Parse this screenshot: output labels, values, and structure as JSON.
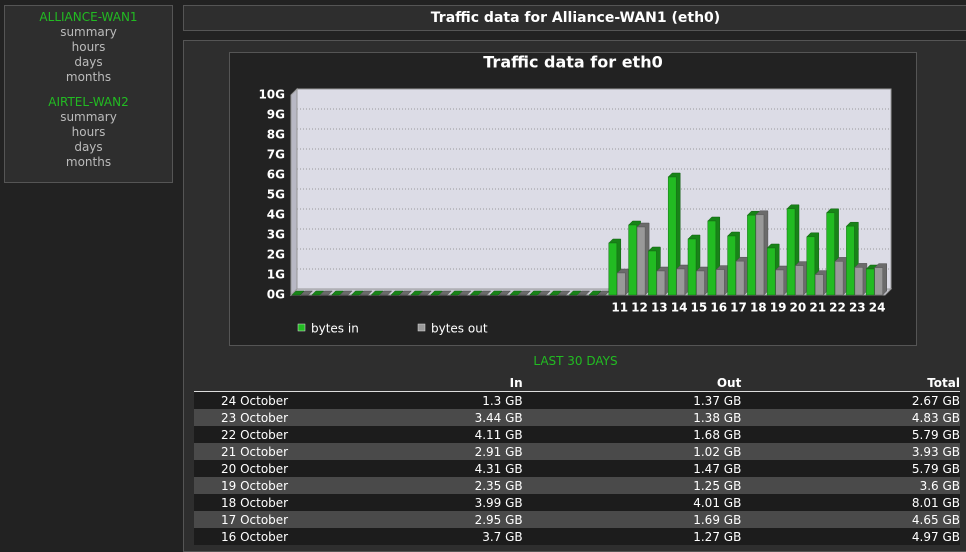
{
  "sidebar": [
    {
      "title": "ALLIANCE-WAN1",
      "links": [
        "summary",
        "hours",
        "days",
        "months"
      ]
    },
    {
      "title": "AIRTEL-WAN2",
      "links": [
        "summary",
        "hours",
        "days",
        "months"
      ]
    }
  ],
  "header": {
    "title": "Traffic data for Alliance-WAN1 (eth0)"
  },
  "chart_data": {
    "type": "bar",
    "title": "Traffic data for eth0",
    "categories": [
      null,
      null,
      null,
      null,
      null,
      null,
      null,
      null,
      null,
      null,
      null,
      null,
      null,
      null,
      null,
      null,
      "11",
      "12",
      "13",
      "14",
      "15",
      "16",
      "17",
      "18",
      "19",
      "20",
      "21",
      "22",
      "23",
      "24"
    ],
    "series": [
      {
        "name": "bytes in",
        "color": "#22bb22",
        "values": [
          0,
          0,
          0,
          0,
          0,
          0,
          0,
          0,
          0,
          0,
          0,
          0,
          0,
          0,
          0,
          0,
          2.6,
          3.5,
          2.2,
          5.9,
          2.8,
          3.7,
          2.95,
          3.99,
          2.35,
          4.31,
          2.91,
          4.11,
          3.44,
          1.3
        ]
      },
      {
        "name": "bytes out",
        "color": "#999999",
        "values": [
          0,
          0,
          0,
          0,
          0,
          0,
          0,
          0,
          0,
          0,
          0,
          0,
          0,
          0,
          0,
          0,
          1.1,
          3.4,
          1.2,
          1.3,
          1.2,
          1.27,
          1.69,
          4.01,
          1.25,
          1.47,
          1.02,
          1.68,
          1.38,
          1.37
        ]
      }
    ],
    "ylim": [
      0,
      10
    ],
    "yticks": [
      {
        "value": 0,
        "label": "0G"
      },
      {
        "value": 1,
        "label": "1G"
      },
      {
        "value": 2,
        "label": "2G"
      },
      {
        "value": 3,
        "label": "3G"
      },
      {
        "value": 4,
        "label": "4G"
      },
      {
        "value": 5,
        "label": "5G"
      },
      {
        "value": 6,
        "label": "6G"
      },
      {
        "value": 7,
        "label": "7G"
      },
      {
        "value": 8,
        "label": "8G"
      },
      {
        "value": 9,
        "label": "9G"
      },
      {
        "value": 10,
        "label": "10G"
      }
    ],
    "grid": true
  },
  "table": {
    "caption": "LAST 30 DAYS",
    "columns": [
      "In",
      "Out",
      "Total"
    ],
    "rows": [
      [
        "24 October",
        "1.3 GB",
        "1.37 GB",
        "2.67 GB"
      ],
      [
        "23 October",
        "3.44 GB",
        "1.38 GB",
        "4.83 GB"
      ],
      [
        "22 October",
        "4.11 GB",
        "1.68 GB",
        "5.79 GB"
      ],
      [
        "21 October",
        "2.91 GB",
        "1.02 GB",
        "3.93 GB"
      ],
      [
        "20 October",
        "4.31 GB",
        "1.47 GB",
        "5.79 GB"
      ],
      [
        "19 October",
        "2.35 GB",
        "1.25 GB",
        "3.6 GB"
      ],
      [
        "18 October",
        "3.99 GB",
        "4.01 GB",
        "8.01 GB"
      ],
      [
        "17 October",
        "2.95 GB",
        "1.69 GB",
        "4.65 GB"
      ],
      [
        "16 October",
        "3.7 GB",
        "1.27 GB",
        "4.97 GB"
      ]
    ]
  }
}
